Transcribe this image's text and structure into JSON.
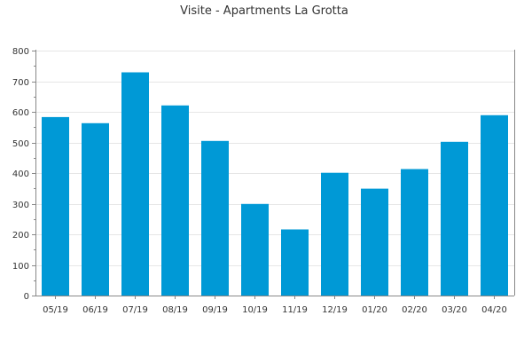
{
  "chart_data": {
    "type": "bar",
    "title": "Visite - Apartments La Grotta",
    "xlabel": "",
    "ylabel": "",
    "categories": [
      "05/19",
      "06/19",
      "07/19",
      "08/19",
      "09/19",
      "10/19",
      "11/19",
      "12/19",
      "01/20",
      "02/20",
      "03/20",
      "04/20"
    ],
    "values": [
      583,
      563,
      729,
      621,
      505,
      299,
      216,
      401,
      349,
      413,
      502,
      589
    ],
    "ylim": [
      0,
      800
    ],
    "yticks": [
      0,
      100,
      200,
      300,
      400,
      500,
      600,
      700,
      800
    ],
    "grid": true,
    "legend": "none",
    "bar_color": "#0099d6"
  }
}
